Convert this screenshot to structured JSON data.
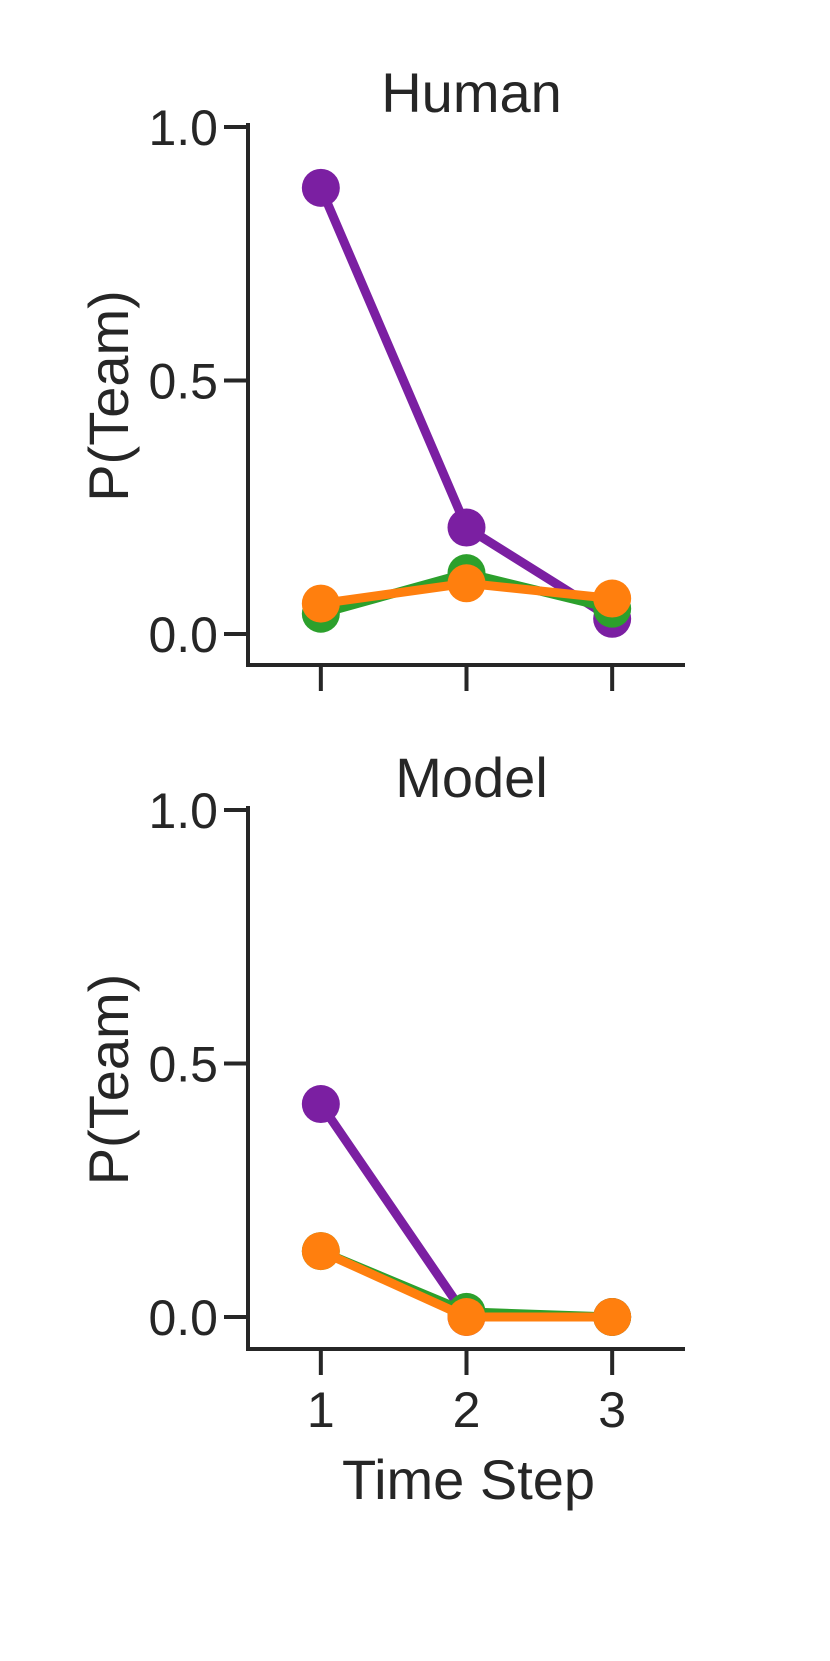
{
  "colors": {
    "purple": "#7B1FA2",
    "green": "#2CA02C",
    "orange": "#FF7F0E",
    "axis": "#262626"
  },
  "chart_data": [
    {
      "type": "line",
      "title": "Human",
      "xlabel": "",
      "ylabel": "P(Team)",
      "x": [
        1,
        2,
        3
      ],
      "xticks": [
        1,
        2,
        3
      ],
      "xtick_labels_visible": false,
      "yticks": [
        0.0,
        0.5,
        1.0
      ],
      "ytick_labels": [
        "0.0",
        "0.5",
        "1.0"
      ],
      "ylim": [
        -0.06,
        1.0
      ],
      "xlim": [
        0.5,
        3.5
      ],
      "grid": false,
      "series": [
        {
          "color": "#7B1FA2",
          "values": [
            0.88,
            0.21,
            0.03
          ]
        },
        {
          "color": "#2CA02C",
          "values": [
            0.04,
            0.12,
            0.05
          ]
        },
        {
          "color": "#FF7F0E",
          "values": [
            0.06,
            0.1,
            0.07
          ]
        }
      ]
    },
    {
      "type": "line",
      "title": "Model",
      "xlabel": "Time Step",
      "ylabel": "P(Team)",
      "x": [
        1,
        2,
        3
      ],
      "xticks": [
        1,
        2,
        3
      ],
      "xtick_labels": [
        "1",
        "2",
        "3"
      ],
      "xtick_labels_visible": true,
      "yticks": [
        0.0,
        0.5,
        1.0
      ],
      "ytick_labels": [
        "0.0",
        "0.5",
        "1.0"
      ],
      "ylim": [
        -0.06,
        1.0
      ],
      "xlim": [
        0.5,
        3.5
      ],
      "grid": false,
      "series": [
        {
          "color": "#7B1FA2",
          "values": [
            0.42,
            0.0,
            0.0
          ]
        },
        {
          "color": "#2CA02C",
          "values": [
            0.13,
            0.01,
            0.0
          ]
        },
        {
          "color": "#FF7F0E",
          "values": [
            0.13,
            0.0,
            0.0
          ]
        }
      ]
    }
  ]
}
